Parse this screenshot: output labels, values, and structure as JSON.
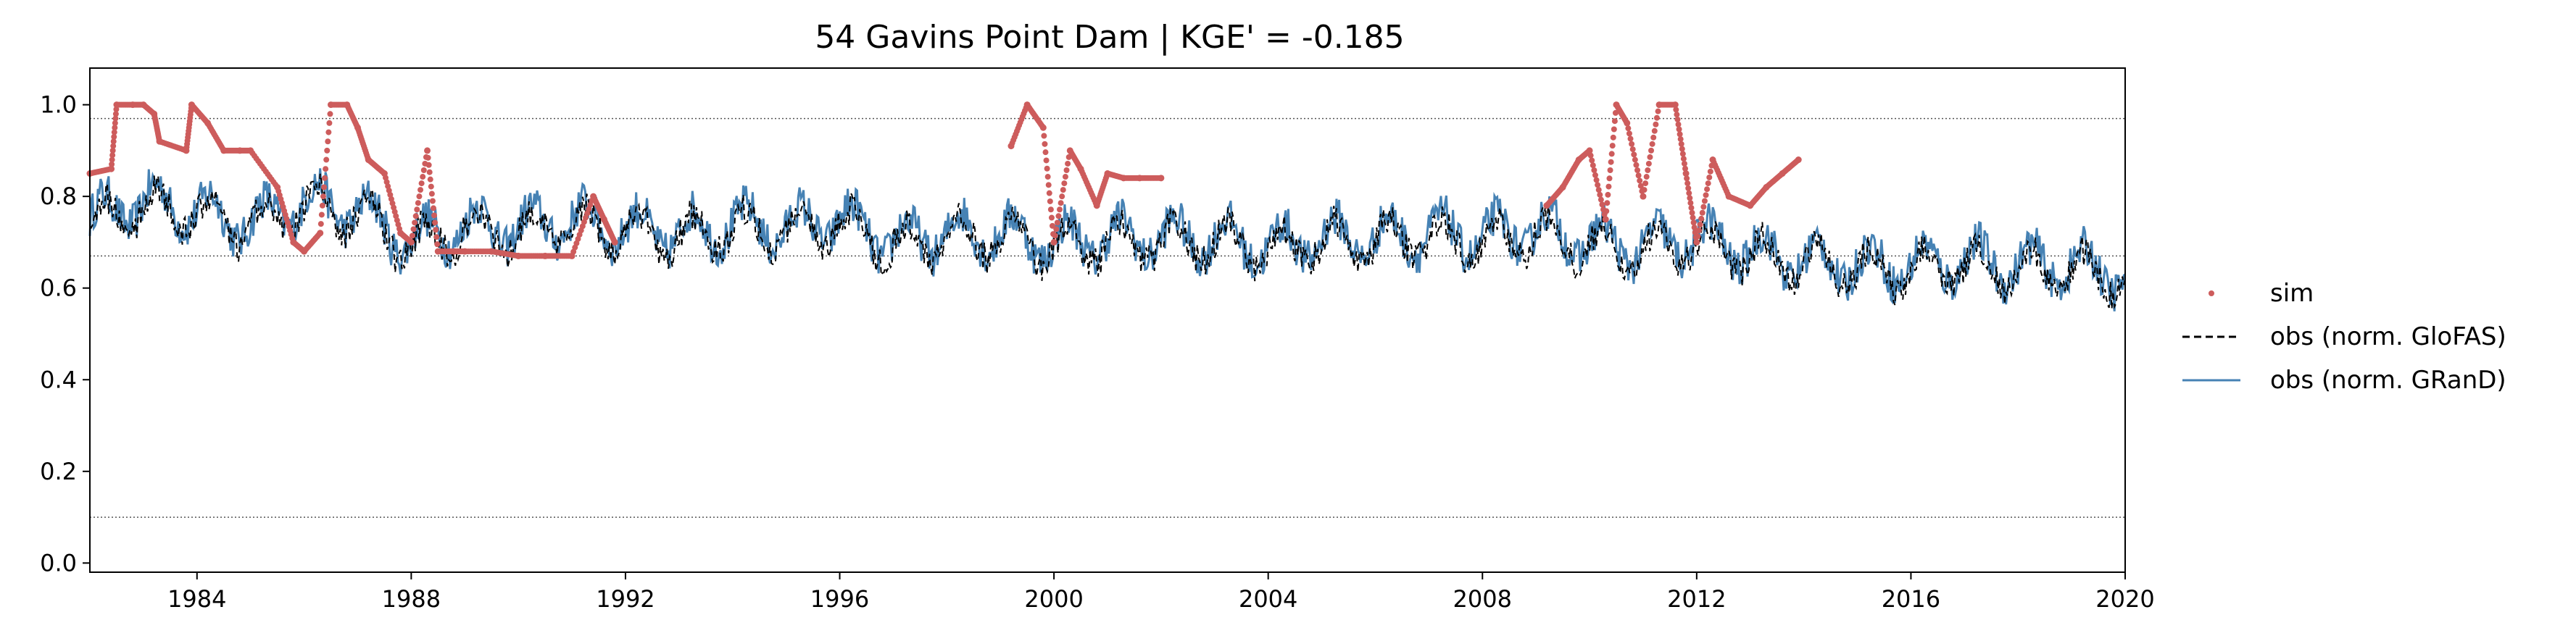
{
  "chart_data": {
    "type": "line",
    "title": "54  Gavins Point Dam | KGE' = -0.185",
    "xlabel": "",
    "ylabel": "",
    "xlim": [
      1982.0,
      2020.0
    ],
    "ylim": [
      -0.02,
      1.08
    ],
    "x_ticks": [
      "1984",
      "1988",
      "1992",
      "1996",
      "2000",
      "2004",
      "2008",
      "2012",
      "2016",
      "2020"
    ],
    "y_ticks": [
      "0.0",
      "0.2",
      "0.4",
      "0.6",
      "0.8",
      "1.0"
    ],
    "reference_lines": [
      0.97,
      0.67,
      0.1
    ],
    "legend_position": "right",
    "colors": {
      "sim": "#cd5c5c",
      "glofas": "#000000",
      "grand": "#4682b4"
    },
    "series": [
      {
        "name": "sim",
        "style": "points",
        "x": [
          1982.0,
          1982.4,
          1982.5,
          1982.8,
          1983.0,
          1983.2,
          1983.3,
          1983.8,
          1983.9,
          1984.2,
          1984.5,
          1984.8,
          1985.0,
          1985.5,
          1985.8,
          1986.0,
          1986.3,
          1986.5,
          1986.8,
          1987.0,
          1987.2,
          1987.5,
          1987.8,
          1988.0,
          1988.3,
          1988.5,
          1988.8,
          1989.0,
          1989.5,
          1990.0,
          1990.5,
          1991.0,
          1991.4,
          1991.6,
          1991.8,
          1999.2,
          1999.5,
          1999.8,
          2000.0,
          2000.3,
          2000.5,
          2000.8,
          2001.0,
          2001.3,
          2001.6,
          2002.0,
          2009.2,
          2009.5,
          2009.8,
          2010.0,
          2010.3,
          2010.5,
          2010.7,
          2011.0,
          2011.3,
          2011.6,
          2011.8,
          2012.0,
          2012.3,
          2012.6,
          2013.0,
          2013.3,
          2013.6,
          2013.9
        ],
        "y": [
          0.85,
          0.86,
          1.0,
          1.0,
          1.0,
          0.98,
          0.92,
          0.9,
          1.0,
          0.96,
          0.9,
          0.9,
          0.9,
          0.82,
          0.7,
          0.68,
          0.72,
          1.0,
          1.0,
          0.95,
          0.88,
          0.85,
          0.72,
          0.7,
          0.9,
          0.68,
          0.68,
          0.68,
          0.68,
          0.67,
          0.67,
          0.67,
          0.8,
          0.75,
          0.7,
          0.91,
          1.0,
          0.95,
          0.7,
          0.9,
          0.86,
          0.78,
          0.85,
          0.84,
          0.84,
          0.84,
          0.78,
          0.82,
          0.88,
          0.9,
          0.75,
          1.0,
          0.96,
          0.8,
          1.0,
          1.0,
          0.85,
          0.7,
          0.88,
          0.8,
          0.78,
          0.82,
          0.85,
          0.88
        ]
      },
      {
        "name": "obs (norm. GloFAS)",
        "style": "dashed",
        "x": [
          1982.0,
          1983.0,
          1984.0,
          1985.0,
          1986.0,
          1987.0,
          1988.0,
          1989.0,
          1990.0,
          1991.0,
          1992.0,
          1993.0,
          1994.0,
          1995.0,
          1996.0,
          1997.0,
          1998.0,
          1999.0,
          2000.0,
          2001.0,
          2002.0,
          2003.0,
          2004.0,
          2005.0,
          2006.0,
          2007.0,
          2008.0,
          2009.0,
          2010.0,
          2011.0,
          2012.0,
          2013.0,
          2014.0,
          2015.0,
          2016.0,
          2017.0,
          2018.0,
          2019.0,
          2020.0
        ],
        "y": [
          0.74,
          0.78,
          0.76,
          0.73,
          0.78,
          0.76,
          0.69,
          0.73,
          0.72,
          0.74,
          0.72,
          0.71,
          0.73,
          0.72,
          0.74,
          0.69,
          0.71,
          0.71,
          0.69,
          0.7,
          0.7,
          0.7,
          0.68,
          0.7,
          0.7,
          0.71,
          0.7,
          0.72,
          0.69,
          0.68,
          0.7,
          0.67,
          0.65,
          0.64,
          0.64,
          0.65,
          0.64,
          0.64,
          0.62
        ]
      },
      {
        "name": "obs (norm. GRanD)",
        "style": "line",
        "x": [
          1982.0,
          1983.0,
          1984.0,
          1985.0,
          1986.0,
          1987.0,
          1988.0,
          1989.0,
          1990.0,
          1991.0,
          1992.0,
          1993.0,
          1994.0,
          1995.0,
          1996.0,
          1997.0,
          1998.0,
          1999.0,
          2000.0,
          2001.0,
          2002.0,
          2003.0,
          2004.0,
          2005.0,
          2006.0,
          2007.0,
          2008.0,
          2009.0,
          2010.0,
          2011.0,
          2012.0,
          2013.0,
          2014.0,
          2015.0,
          2016.0,
          2017.0,
          2018.0,
          2019.0,
          2020.0
        ],
        "y": [
          0.75,
          0.79,
          0.77,
          0.74,
          0.79,
          0.77,
          0.7,
          0.74,
          0.73,
          0.75,
          0.73,
          0.72,
          0.74,
          0.73,
          0.75,
          0.7,
          0.72,
          0.72,
          0.7,
          0.71,
          0.71,
          0.71,
          0.69,
          0.71,
          0.71,
          0.72,
          0.71,
          0.73,
          0.7,
          0.69,
          0.71,
          0.68,
          0.66,
          0.65,
          0.65,
          0.66,
          0.65,
          0.65,
          0.63
        ]
      }
    ]
  },
  "legend": {
    "sim": "sim",
    "glofas": "obs (norm. GloFAS)",
    "grand": "obs (norm. GRanD)"
  }
}
